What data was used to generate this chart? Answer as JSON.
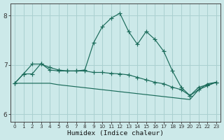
{
  "title": "",
  "xlabel": "Humidex (Indice chaleur)",
  "ylabel": "",
  "xlim": [
    -0.5,
    23.5
  ],
  "ylim": [
    5.85,
    8.25
  ],
  "yticks": [
    6,
    7,
    8
  ],
  "xticks": [
    0,
    1,
    2,
    3,
    4,
    5,
    6,
    7,
    8,
    9,
    10,
    11,
    12,
    13,
    14,
    15,
    16,
    17,
    18,
    19,
    20,
    21,
    22,
    23
  ],
  "bg_color": "#cce9e9",
  "grid_color": "#aad0d0",
  "line_color": "#1a6b5a",
  "series": [
    [
      6.63,
      6.82,
      6.82,
      7.03,
      6.9,
      6.88,
      6.88,
      6.88,
      6.9,
      7.45,
      7.78,
      7.95,
      8.05,
      7.68,
      7.42,
      7.68,
      7.52,
      7.28,
      6.88,
      6.55,
      6.38,
      6.55,
      6.6,
      6.65
    ],
    [
      6.63,
      6.63,
      6.63,
      6.63,
      6.63,
      6.6,
      6.58,
      6.56,
      6.54,
      6.52,
      6.5,
      6.48,
      6.46,
      6.44,
      6.42,
      6.4,
      6.38,
      6.36,
      6.34,
      6.32,
      6.3,
      6.5,
      6.62,
      6.65
    ],
    [
      6.63,
      6.82,
      7.02,
      7.02,
      6.95,
      6.9,
      6.88,
      6.88,
      6.88,
      6.85,
      6.85,
      6.83,
      6.82,
      6.8,
      6.75,
      6.7,
      6.65,
      6.62,
      6.55,
      6.5,
      6.38,
      6.5,
      6.58,
      6.65
    ]
  ]
}
